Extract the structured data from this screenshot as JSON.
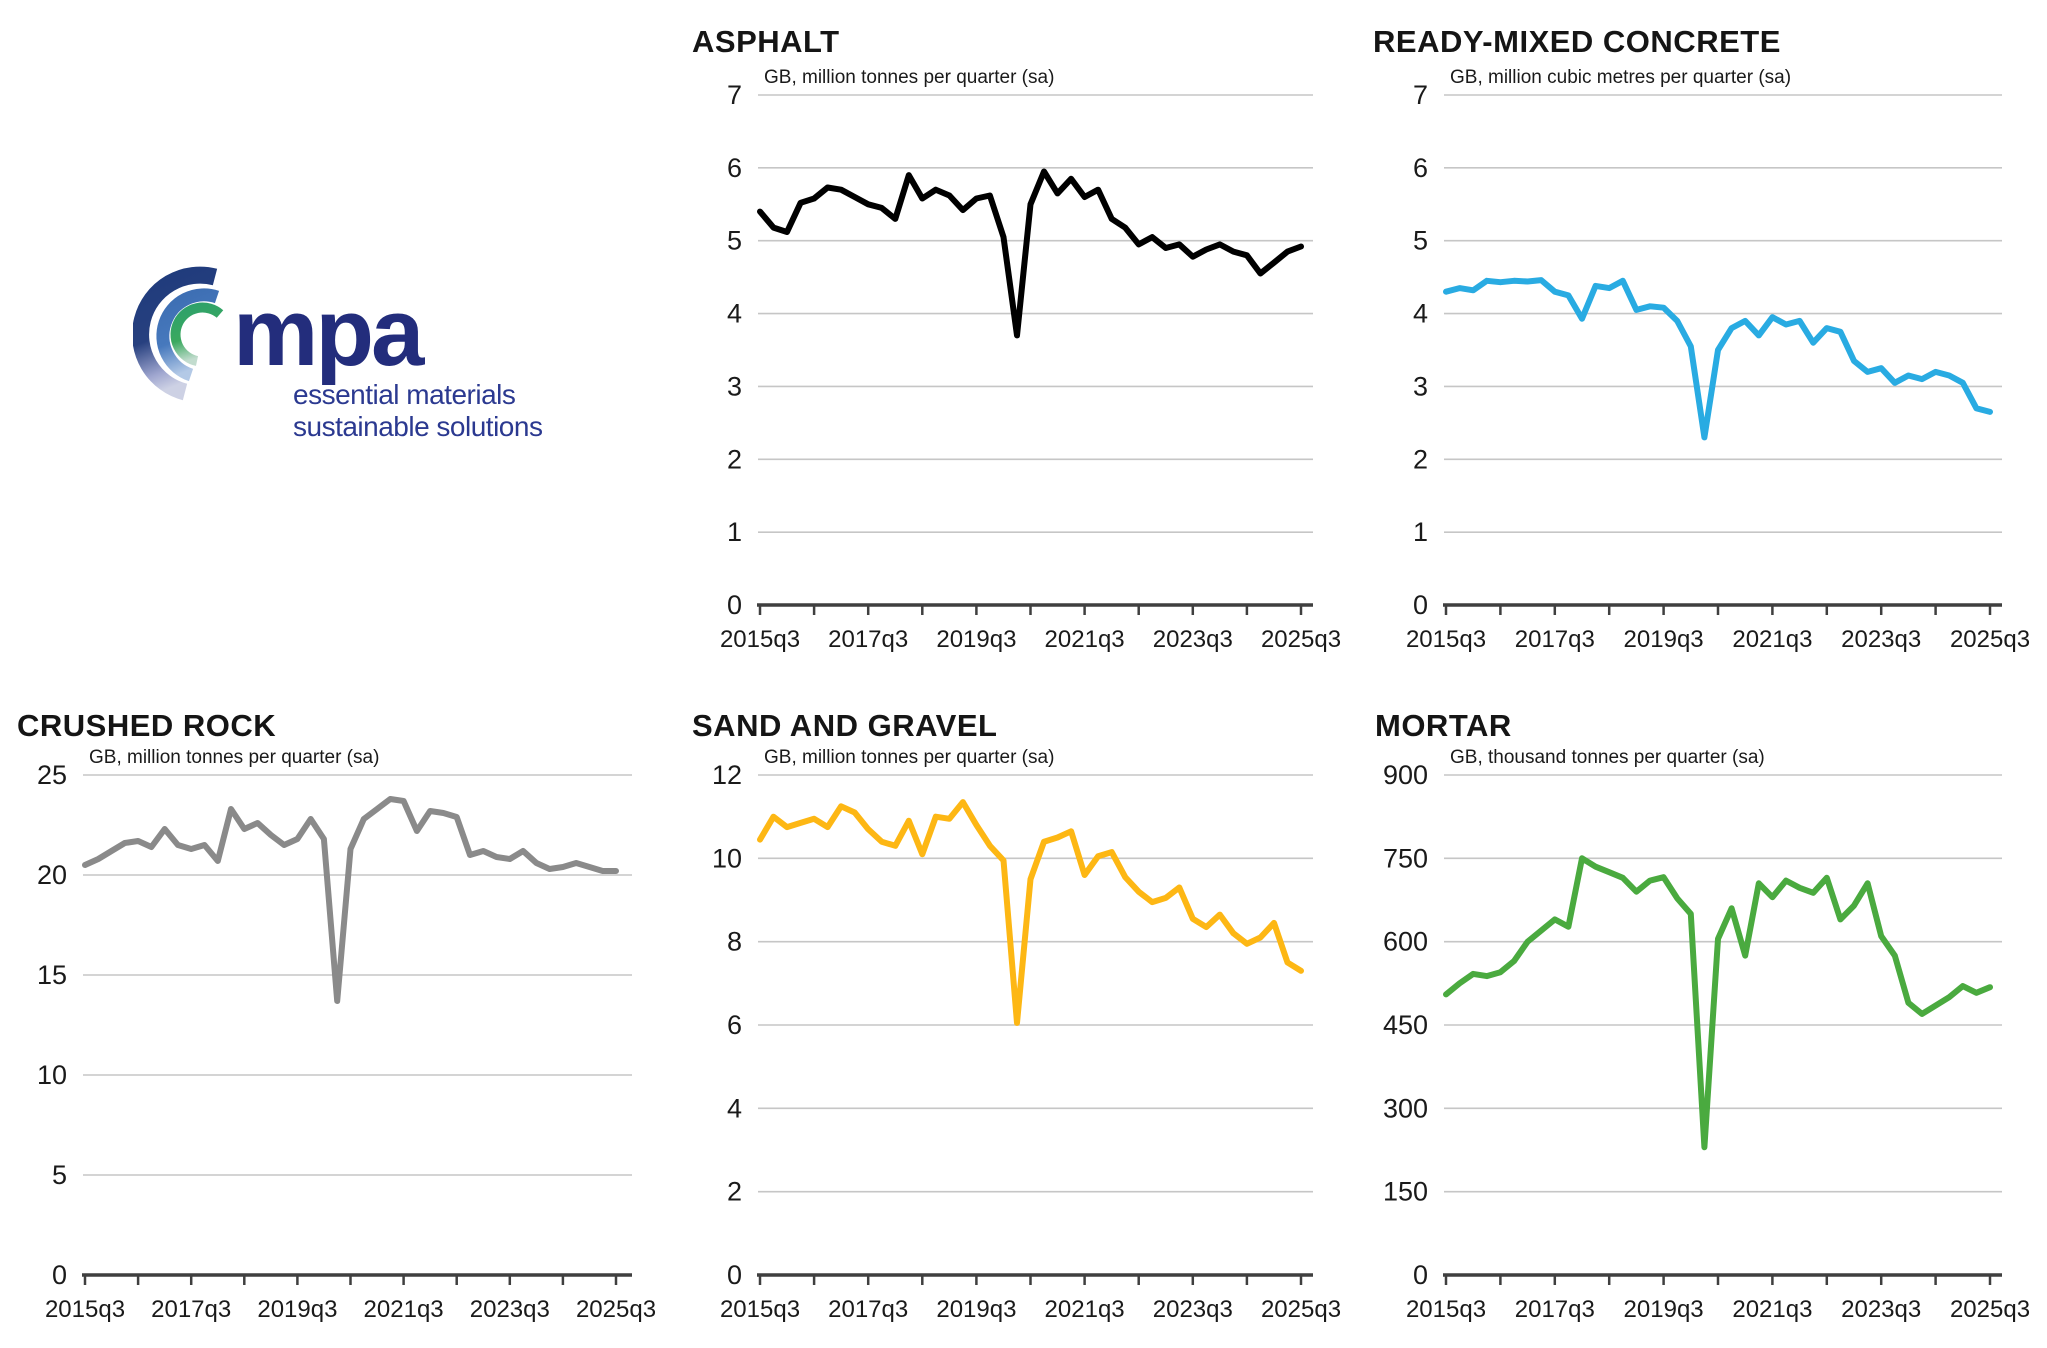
{
  "page": {
    "background": "#ffffff"
  },
  "logo": {
    "wordmark": "mpa",
    "tagline_line1": "essential materials",
    "tagline_line2": "sustainable solutions",
    "colors": {
      "wordmark": "#232d7c",
      "tagline": "#2b3990",
      "arc_outer": "#1f3b7c",
      "arc_middle": "#4779bd",
      "arc_inner": "#2da06b"
    }
  },
  "axis": {
    "x_start": "2015q3",
    "x_end": "2025q3",
    "frequency": "quarterly",
    "tick_interval": "yearly",
    "label_interval": "every 2 years"
  },
  "chart_data": [
    {
      "id": "asphalt",
      "type": "line",
      "title": "ASPHALT",
      "subtitle": "GB, million tonnes per quarter (sa)",
      "color": "#000000",
      "ylim": [
        0,
        7
      ],
      "ytick_labels": [
        "0",
        "1",
        "2",
        "3",
        "4",
        "5",
        "6",
        "7"
      ],
      "x_tick_labels": [
        "2015q3",
        "2017q3",
        "2019q3",
        "2021q3",
        "2023q3",
        "2025q3"
      ],
      "grid": true,
      "values": [
        5.4,
        5.18,
        5.12,
        5.52,
        5.58,
        5.73,
        5.7,
        5.6,
        5.5,
        5.45,
        5.3,
        5.9,
        5.58,
        5.7,
        5.62,
        5.42,
        5.58,
        5.62,
        5.05,
        3.7,
        5.5,
        5.95,
        5.65,
        5.85,
        5.6,
        5.7,
        5.3,
        5.18,
        4.95,
        5.05,
        4.9,
        4.95,
        4.78,
        4.88,
        4.95,
        4.85,
        4.8,
        4.55,
        4.7,
        4.85,
        4.92
      ]
    },
    {
      "id": "rmc",
      "type": "line",
      "title": "READY-MIXED CONCRETE",
      "subtitle": "GB, million cubic metres per quarter (sa)",
      "color": "#29abe2",
      "ylim": [
        0,
        7
      ],
      "ytick_labels": [
        "0",
        "1",
        "2",
        "3",
        "4",
        "5",
        "6",
        "7"
      ],
      "x_tick_labels": [
        "2015q3",
        "2017q3",
        "2019q3",
        "2021q3",
        "2023q3",
        "2025q3"
      ],
      "grid": true,
      "values": [
        4.3,
        4.35,
        4.32,
        4.45,
        4.43,
        4.45,
        4.44,
        4.46,
        4.3,
        4.25,
        3.93,
        4.38,
        4.35,
        4.45,
        4.05,
        4.1,
        4.08,
        3.9,
        3.55,
        2.3,
        3.5,
        3.8,
        3.9,
        3.7,
        3.95,
        3.85,
        3.9,
        3.6,
        3.8,
        3.75,
        3.35,
        3.2,
        3.25,
        3.05,
        3.15,
        3.1,
        3.2,
        3.15,
        3.05,
        2.7,
        2.65
      ]
    },
    {
      "id": "crushed",
      "type": "line",
      "title": "CRUSHED ROCK",
      "subtitle": "GB, million tonnes per quarter (sa)",
      "color": "#8a8a8a",
      "ylim": [
        0,
        25
      ],
      "ytick_labels": [
        "0",
        "5",
        "10",
        "15",
        "20",
        "25"
      ],
      "x_tick_labels": [
        "2015q3",
        "2017q3",
        "2019q3",
        "2021q3",
        "2023q3",
        "2025q3"
      ],
      "grid": true,
      "values": [
        20.5,
        20.8,
        21.2,
        21.6,
        21.7,
        21.4,
        22.3,
        21.5,
        21.3,
        21.5,
        20.7,
        23.3,
        22.3,
        22.6,
        22.0,
        21.5,
        21.8,
        22.8,
        21.8,
        13.7,
        21.3,
        22.8,
        23.3,
        23.8,
        23.7,
        22.2,
        23.2,
        23.1,
        22.9,
        21.0,
        21.2,
        20.9,
        20.8,
        21.2,
        20.6,
        20.3,
        20.4,
        20.6,
        20.4,
        20.2,
        20.2
      ]
    },
    {
      "id": "sand",
      "type": "line",
      "title": "SAND AND GRAVEL",
      "subtitle": "GB, million tonnes per quarter (sa)",
      "color": "#fdb714",
      "ylim": [
        0,
        12
      ],
      "ytick_labels": [
        "0",
        "2",
        "4",
        "6",
        "8",
        "10",
        "12"
      ],
      "x_tick_labels": [
        "2015q3",
        "2017q3",
        "2019q3",
        "2021q3",
        "2023q3",
        "2025q3"
      ],
      "grid": true,
      "values": [
        10.45,
        11.0,
        10.75,
        10.85,
        10.95,
        10.75,
        11.25,
        11.1,
        10.7,
        10.4,
        10.3,
        10.9,
        10.1,
        11.0,
        10.95,
        11.35,
        10.8,
        10.3,
        9.95,
        6.05,
        9.5,
        10.4,
        10.5,
        10.65,
        9.6,
        10.05,
        10.15,
        9.55,
        9.2,
        8.95,
        9.05,
        9.3,
        8.55,
        8.35,
        8.65,
        8.2,
        7.95,
        8.1,
        8.45,
        7.5,
        7.3
      ]
    },
    {
      "id": "mortar",
      "type": "line",
      "title": "MORTAR",
      "subtitle": "GB, thousand tonnes per quarter (sa)",
      "color": "#4aaa3f",
      "ylim": [
        0,
        900
      ],
      "ytick_labels": [
        "0",
        "150",
        "300",
        "450",
        "600",
        "750",
        "900"
      ],
      "x_tick_labels": [
        "2015q3",
        "2017q3",
        "2019q3",
        "2021q3",
        "2023q3",
        "2025q3"
      ],
      "grid": true,
      "values": [
        505,
        525,
        542,
        538,
        545,
        565,
        600,
        620,
        640,
        627,
        750,
        735,
        725,
        715,
        690,
        710,
        716,
        678,
        650,
        230,
        605,
        660,
        575,
        705,
        680,
        710,
        697,
        688,
        715,
        640,
        665,
        705,
        610,
        575,
        490,
        470,
        485,
        500,
        520,
        508,
        518
      ]
    }
  ]
}
